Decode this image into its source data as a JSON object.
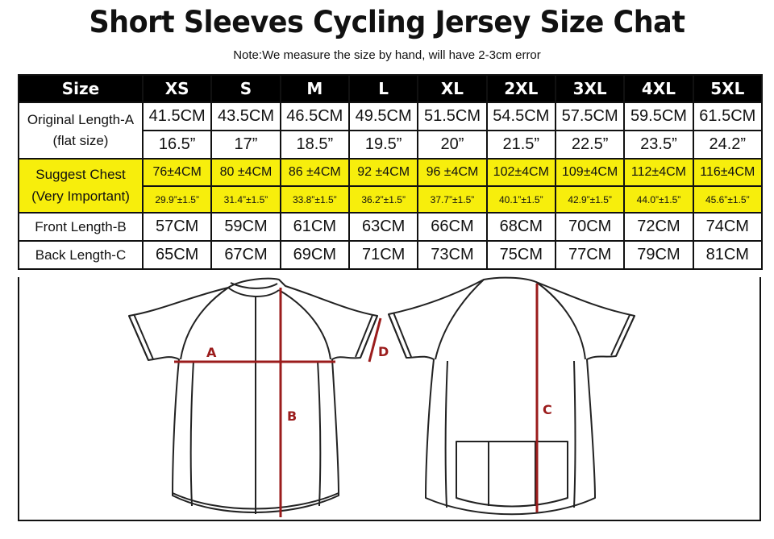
{
  "title": "Short Sleeves Cycling Jersey Size Chat",
  "note": "Note:We measure the size by hand, will have 2-3cm error",
  "table": {
    "header": [
      "Size",
      "XS",
      "S",
      "M",
      "L",
      "XL",
      "2XL",
      "3XL",
      "4XL",
      "5XL"
    ],
    "original_length": {
      "label_line1": "Original Length-A",
      "label_line2": "(flat size)",
      "cm": [
        "41.5CM",
        "43.5CM",
        "46.5CM",
        "49.5CM",
        "51.5CM",
        "54.5CM",
        "57.5CM",
        "59.5CM",
        "61.5CM"
      ],
      "inch": [
        "16.5”",
        "17”",
        "18.5”",
        "19.5”",
        "20”",
        "21.5”",
        "22.5”",
        "23.5”",
        "24.2”"
      ]
    },
    "suggest_chest": {
      "label_line1": "Suggest Chest",
      "label_line2": "(Very Important)",
      "cm": [
        "76±4CM",
        "80 ±4CM",
        "86 ±4CM",
        "92 ±4CM",
        "96 ±4CM",
        "102±4CM",
        "109±4CM",
        "112±4CM",
        "116±4CM"
      ],
      "inch": [
        "29.9”±1.5”",
        "31.4”±1.5”",
        "33.8”±1.5”",
        "36.2”±1.5”",
        "37.7”±1.5”",
        "40.1”±1.5”",
        "42.9”±1.5”",
        "44.0”±1.5”",
        "45.6”±1.5”"
      ]
    },
    "front_length": {
      "label": "Front Length-B",
      "cm": [
        "57CM",
        "59CM",
        "61CM",
        "63CM",
        "66CM",
        "68CM",
        "70CM",
        "72CM",
        "74CM"
      ]
    },
    "back_length": {
      "label": "Back Length-C",
      "cm": [
        "65CM",
        "67CM",
        "69CM",
        "71CM",
        "73CM",
        "75CM",
        "77CM",
        "79CM",
        "81CM"
      ]
    }
  },
  "diagram": {
    "front_labels": {
      "a": "A",
      "b": "B",
      "d": "D"
    },
    "back_labels": {
      "c": "C"
    },
    "measure_color": "#9b1c1c",
    "outline_color": "#222222"
  },
  "colors": {
    "header_bg": "#000000",
    "highlight": "#f7ee0c"
  }
}
